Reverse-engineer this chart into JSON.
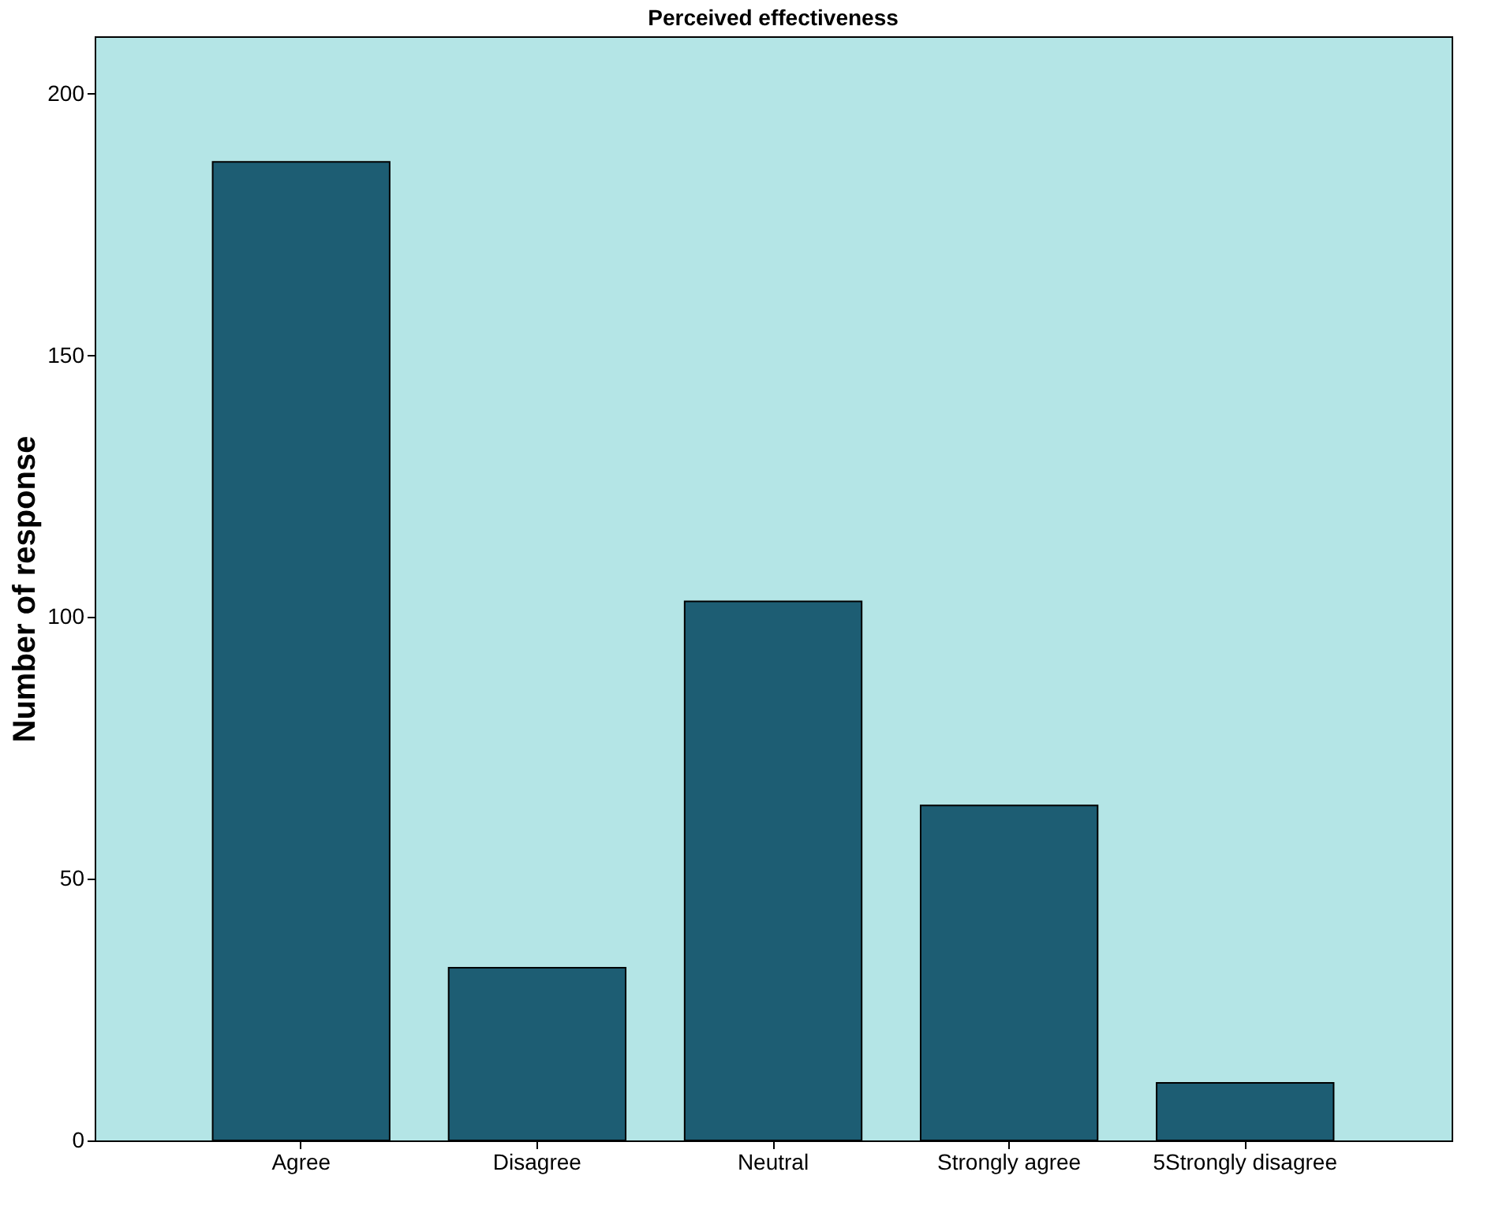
{
  "chart_data": {
    "type": "bar",
    "title": "Perceived effectiveness",
    "ylabel": "Number of response",
    "categories": [
      "Agree",
      "Disagree",
      "Neutral",
      "Strongly agree",
      "5Strongly disagree"
    ],
    "values": [
      187,
      33,
      103,
      64,
      11
    ],
    "color": "#1d5d73",
    "ylim": [
      0,
      211
    ],
    "yticks": [
      0,
      50,
      100,
      150,
      200
    ],
    "grid": false
  }
}
